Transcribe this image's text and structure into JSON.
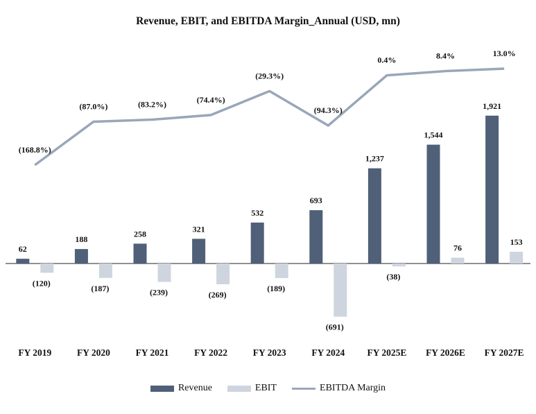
{
  "chart_data": {
    "type": "bar",
    "title": "Revenue, EBIT, and EBITDA Margin_Annual (USD, mn)",
    "categories": [
      "FY 2019",
      "FY 2020",
      "FY 2021",
      "FY 2022",
      "FY 2023",
      "FY 2024",
      "FY 2025E",
      "FY 2026E",
      "FY 2027E"
    ],
    "series": [
      {
        "name": "Revenue",
        "kind": "bar",
        "color": "#4f6078",
        "values": [
          62,
          188,
          258,
          321,
          532,
          693,
          1237,
          1544,
          1921
        ],
        "labels": [
          "62",
          "188",
          "258",
          "321",
          "532",
          "693",
          "1,237",
          "1,544",
          "1,921"
        ]
      },
      {
        "name": "EBIT",
        "kind": "bar",
        "color": "#ced5df",
        "values": [
          -120,
          -187,
          -239,
          -269,
          -189,
          -691,
          -38,
          76,
          153
        ],
        "labels": [
          "(120)",
          "(187)",
          "(239)",
          "(269)",
          "(189)",
          "(691)",
          "(38)",
          "76",
          "153"
        ]
      },
      {
        "name": "EBITDA Margin",
        "kind": "line",
        "color": "#9aa6b9",
        "values": [
          -168.8,
          -87.0,
          -83.2,
          -74.4,
          -29.3,
          -94.3,
          0.4,
          8.4,
          13.0
        ],
        "labels": [
          "(168.8%)",
          "(87.0%)",
          "(83.2%)",
          "(74.4%)",
          "(29.3%)",
          "(94.3%)",
          "0.4%",
          "8.4%",
          "13.0%"
        ]
      }
    ],
    "legend_position": "bottom",
    "grid": false
  }
}
